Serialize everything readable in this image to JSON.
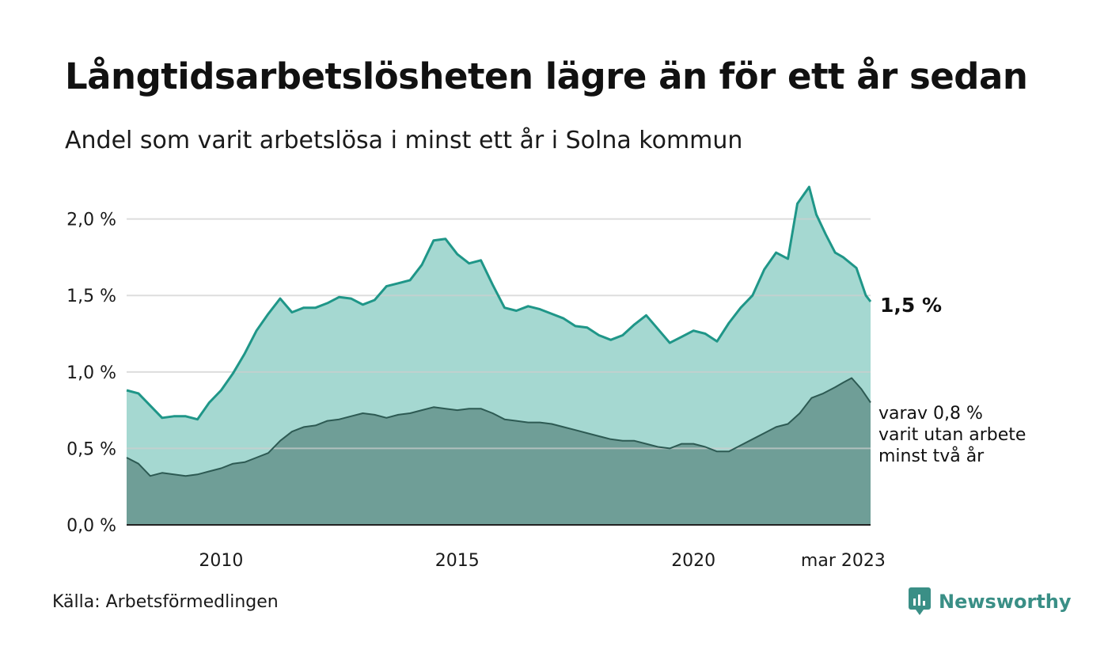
{
  "header": {
    "title": "Långtidsarbetslösheten lägre än för ett år sedan",
    "subtitle": "Andel som varit arbetslösa i minst ett år i Solna kommun"
  },
  "footer": {
    "source": "Källa: Arbetsförmedlingen",
    "brand": "Newsworthy"
  },
  "colors": {
    "total_fill": "#a5d8d1",
    "total_line": "#1f9688",
    "longterm_fill": "#6f9e97",
    "longterm_line": "#2d5a53",
    "grid": "#dddddd",
    "brand": "#3a8f86"
  },
  "chart_data": {
    "type": "area",
    "xaxis": {
      "ticks": [
        {
          "label": "2010",
          "year": 2010.0
        },
        {
          "label": "2015",
          "year": 2015.0
        },
        {
          "label": "2020",
          "year": 2020.0
        },
        {
          "label": "mar 2023",
          "year": 2023.17
        }
      ],
      "range": [
        2008.0,
        2023.17
      ]
    },
    "yaxis": {
      "ticks": [
        "0,0 %",
        "0,5 %",
        "1,0 %",
        "1,5 %",
        "2,0 %"
      ],
      "tick_values": [
        0.0,
        0.5,
        1.0,
        1.5,
        2.0
      ],
      "range": [
        0.0,
        2.2
      ],
      "grid": true
    },
    "series": [
      {
        "label": "1,5 %",
        "label_lines": [],
        "points": [
          [
            2008.0,
            0.88
          ],
          [
            2008.25,
            0.86
          ],
          [
            2008.5,
            0.78
          ],
          [
            2008.75,
            0.7
          ],
          [
            2009.0,
            0.71
          ],
          [
            2009.25,
            0.71
          ],
          [
            2009.5,
            0.69
          ],
          [
            2009.75,
            0.8
          ],
          [
            2010.0,
            0.88
          ],
          [
            2010.25,
            0.99
          ],
          [
            2010.5,
            1.12
          ],
          [
            2010.75,
            1.27
          ],
          [
            2011.0,
            1.38
          ],
          [
            2011.25,
            1.48
          ],
          [
            2011.5,
            1.39
          ],
          [
            2011.75,
            1.42
          ],
          [
            2012.0,
            1.42
          ],
          [
            2012.25,
            1.45
          ],
          [
            2012.5,
            1.49
          ],
          [
            2012.75,
            1.48
          ],
          [
            2013.0,
            1.44
          ],
          [
            2013.25,
            1.47
          ],
          [
            2013.5,
            1.56
          ],
          [
            2013.75,
            1.58
          ],
          [
            2014.0,
            1.6
          ],
          [
            2014.25,
            1.7
          ],
          [
            2014.5,
            1.86
          ],
          [
            2014.75,
            1.87
          ],
          [
            2015.0,
            1.77
          ],
          [
            2015.25,
            1.71
          ],
          [
            2015.5,
            1.73
          ],
          [
            2015.75,
            1.57
          ],
          [
            2016.0,
            1.42
          ],
          [
            2016.25,
            1.4
          ],
          [
            2016.5,
            1.43
          ],
          [
            2016.75,
            1.41
          ],
          [
            2017.0,
            1.38
          ],
          [
            2017.25,
            1.35
          ],
          [
            2017.5,
            1.3
          ],
          [
            2017.75,
            1.29
          ],
          [
            2018.0,
            1.24
          ],
          [
            2018.25,
            1.21
          ],
          [
            2018.5,
            1.24
          ],
          [
            2018.75,
            1.31
          ],
          [
            2019.0,
            1.37
          ],
          [
            2019.25,
            1.28
          ],
          [
            2019.5,
            1.19
          ],
          [
            2019.75,
            1.23
          ],
          [
            2020.0,
            1.27
          ],
          [
            2020.25,
            1.25
          ],
          [
            2020.5,
            1.2
          ],
          [
            2020.75,
            1.32
          ],
          [
            2021.0,
            1.42
          ],
          [
            2021.25,
            1.5
          ],
          [
            2021.5,
            1.67
          ],
          [
            2021.75,
            1.78
          ],
          [
            2022.0,
            1.74
          ],
          [
            2022.2,
            2.1
          ],
          [
            2022.45,
            2.21
          ],
          [
            2022.6,
            2.03
          ],
          [
            2022.8,
            1.9
          ],
          [
            2023.0,
            1.78
          ],
          [
            2023.17,
            1.75
          ],
          [
            2023.45,
            1.68
          ],
          [
            2023.65,
            1.5
          ],
          [
            2023.75,
            1.46
          ]
        ]
      },
      {
        "label": "varav 0,8 %",
        "label_lines": [
          "varit utan arbete",
          "minst två år"
        ],
        "points": [
          [
            2008.0,
            0.44
          ],
          [
            2008.25,
            0.4
          ],
          [
            2008.5,
            0.32
          ],
          [
            2008.75,
            0.34
          ],
          [
            2009.0,
            0.33
          ],
          [
            2009.25,
            0.32
          ],
          [
            2009.5,
            0.33
          ],
          [
            2009.75,
            0.35
          ],
          [
            2010.0,
            0.37
          ],
          [
            2010.25,
            0.4
          ],
          [
            2010.5,
            0.41
          ],
          [
            2010.75,
            0.44
          ],
          [
            2011.0,
            0.47
          ],
          [
            2011.25,
            0.55
          ],
          [
            2011.5,
            0.61
          ],
          [
            2011.75,
            0.64
          ],
          [
            2012.0,
            0.65
          ],
          [
            2012.25,
            0.68
          ],
          [
            2012.5,
            0.69
          ],
          [
            2012.75,
            0.71
          ],
          [
            2013.0,
            0.73
          ],
          [
            2013.25,
            0.72
          ],
          [
            2013.5,
            0.7
          ],
          [
            2013.75,
            0.72
          ],
          [
            2014.0,
            0.73
          ],
          [
            2014.25,
            0.75
          ],
          [
            2014.5,
            0.77
          ],
          [
            2014.75,
            0.76
          ],
          [
            2015.0,
            0.75
          ],
          [
            2015.25,
            0.76
          ],
          [
            2015.5,
            0.76
          ],
          [
            2015.75,
            0.73
          ],
          [
            2016.0,
            0.69
          ],
          [
            2016.25,
            0.68
          ],
          [
            2016.5,
            0.67
          ],
          [
            2016.75,
            0.67
          ],
          [
            2017.0,
            0.66
          ],
          [
            2017.25,
            0.64
          ],
          [
            2017.5,
            0.62
          ],
          [
            2017.75,
            0.6
          ],
          [
            2018.0,
            0.58
          ],
          [
            2018.25,
            0.56
          ],
          [
            2018.5,
            0.55
          ],
          [
            2018.75,
            0.55
          ],
          [
            2019.0,
            0.53
          ],
          [
            2019.25,
            0.51
          ],
          [
            2019.5,
            0.5
          ],
          [
            2019.75,
            0.53
          ],
          [
            2020.0,
            0.53
          ],
          [
            2020.25,
            0.51
          ],
          [
            2020.5,
            0.48
          ],
          [
            2020.75,
            0.48
          ],
          [
            2021.0,
            0.52
          ],
          [
            2021.25,
            0.56
          ],
          [
            2021.5,
            0.6
          ],
          [
            2021.75,
            0.64
          ],
          [
            2022.0,
            0.66
          ],
          [
            2022.25,
            0.73
          ],
          [
            2022.5,
            0.83
          ],
          [
            2022.75,
            0.86
          ],
          [
            2023.0,
            0.9
          ],
          [
            2023.17,
            0.93
          ],
          [
            2023.35,
            0.96
          ],
          [
            2023.55,
            0.89
          ],
          [
            2023.75,
            0.8
          ]
        ]
      }
    ]
  }
}
